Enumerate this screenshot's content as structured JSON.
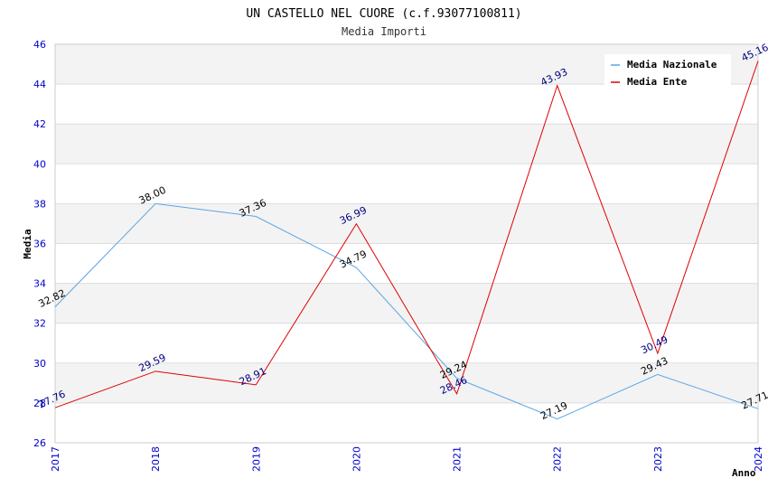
{
  "chart_data": {
    "type": "line",
    "title": "UN CASTELLO NEL CUORE (c.f.93077100811)",
    "subtitle": "Media Importi",
    "xlabel": "Anno",
    "ylabel": "Media",
    "ylim": [
      26,
      46
    ],
    "yticks": [
      "26",
      "28",
      "30",
      "32",
      "34",
      "36",
      "38",
      "40",
      "42",
      "44",
      "46"
    ],
    "categories": [
      "2017",
      "2018",
      "2019",
      "2020",
      "2021",
      "2022",
      "2023",
      "2024"
    ],
    "grid": true,
    "legend_position": "top-right",
    "series": [
      {
        "name": "Media Nazionale",
        "color": "#5aa5e6",
        "label_color": "#000000",
        "values": [
          32.82,
          38.0,
          37.36,
          34.79,
          29.24,
          27.19,
          29.43,
          27.71
        ],
        "labels": [
          "32.82",
          "38.00",
          "37.36",
          "34.79",
          "29.24",
          "27.19",
          "29.43",
          "27.71"
        ]
      },
      {
        "name": "Media Ente",
        "color": "#e00000",
        "label_color": "#000080",
        "values": [
          27.76,
          29.59,
          28.91,
          36.99,
          28.46,
          43.93,
          30.49,
          45.16
        ],
        "labels": [
          "27.76",
          "29.59",
          "28.91",
          "36.99",
          "28.46",
          "43.93",
          "30.49",
          "45.16"
        ]
      }
    ]
  }
}
